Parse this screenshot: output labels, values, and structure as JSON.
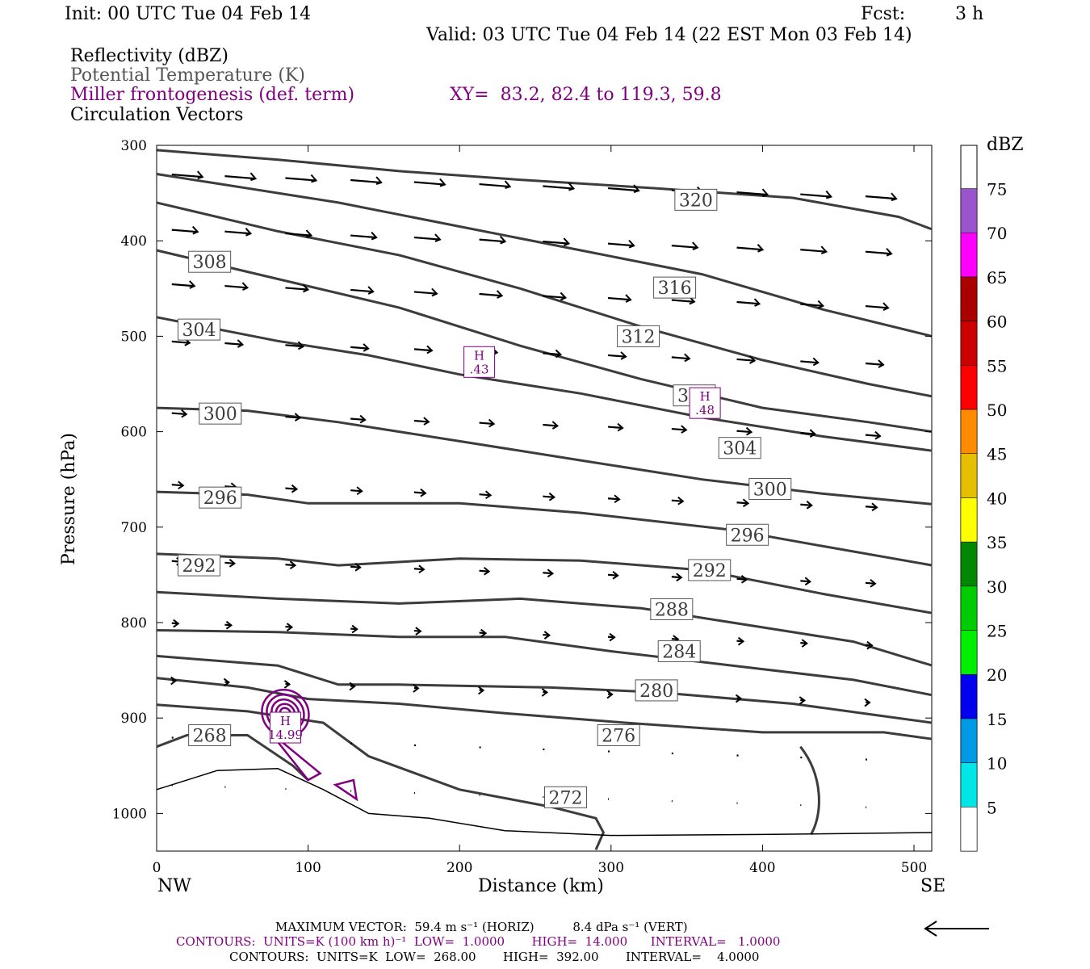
{
  "header": {
    "init": "Init: 00 UTC Tue 04 Feb 14",
    "fcst_label": "Fcst:",
    "fcst_value": "3 h",
    "valid": "Valid: 03 UTC Tue 04 Feb 14 (22 EST Mon 03 Feb 14)"
  },
  "fields": {
    "reflectivity": "Reflectivity (dBZ)",
    "theta": "Potential Temperature (K)",
    "frontogenesis": "Miller frontogenesis (def. term)",
    "xy": "XY=  83.2, 82.4 to 119.3, 59.8",
    "vectors": "Circulation Vectors"
  },
  "footer": {
    "max_vector": "MAXIMUM VECTOR:  59.4 m s⁻¹ (HORIZ)          8.4 dPa s⁻¹ (VERT)",
    "contours_fronto": "CONTOURS:  UNITS=K (100 km h)⁻¹  LOW=  1.0000       HIGH=  14.000      INTERVAL=   1.0000",
    "contours_theta": "CONTOURS:  UNITS=K  LOW=  268.00       HIGH=  392.00       INTERVAL=    4.0000"
  },
  "colors": {
    "theta": "#3c3c3c",
    "fronto": "#800080",
    "vector": "#000000"
  },
  "chart_data": {
    "type": "cross-section",
    "xlabel": "Distance (km)",
    "ylabel": "Pressure (hPa)",
    "x_ticks": [
      0,
      100,
      200,
      300,
      400,
      500
    ],
    "y_ticks": [
      300,
      400,
      500,
      600,
      700,
      800,
      900,
      1000
    ],
    "xlim": [
      0,
      512
    ],
    "ylim": [
      300,
      1040
    ],
    "y_axis": "pressure (inverted)",
    "end_left": "NW",
    "end_right": "SE",
    "colorbar": {
      "unit": "dBZ",
      "levels": [
        5,
        10,
        15,
        20,
        25,
        30,
        35,
        40,
        45,
        50,
        55,
        60,
        65,
        70,
        75
      ],
      "colors": [
        "#ffffff",
        "#00e5e5",
        "#0099e6",
        "#0000ee",
        "#00ee00",
        "#00cc00",
        "#008800",
        "#ffff00",
        "#e5bf00",
        "#ff8c00",
        "#ff0000",
        "#cc0000",
        "#aa0000",
        "#ff00ff",
        "#9955cc"
      ]
    },
    "theta_contours": [
      {
        "value": 268,
        "labeled": true,
        "label_at": [
          35,
          918
        ]
      },
      {
        "value": 272,
        "labeled": true,
        "label_at": [
          270,
          983
        ]
      },
      {
        "value": 276,
        "labeled": true,
        "label_at": [
          305,
          918
        ]
      },
      {
        "value": 280,
        "labeled": true,
        "label_at": [
          330,
          871
        ]
      },
      {
        "value": 284,
        "labeled": true,
        "label_at": [
          345,
          830
        ]
      },
      {
        "value": 288,
        "labeled": true,
        "label_at": [
          340,
          786
        ]
      },
      {
        "value": 292,
        "labeled": true,
        "label_at": [
          28,
          740
        ],
        "label_at2": [
          365,
          745
        ]
      },
      {
        "value": 296,
        "labeled": true,
        "label_at": [
          42,
          669
        ],
        "label_at2": [
          390,
          708
        ]
      },
      {
        "value": 300,
        "labeled": true,
        "label_at": [
          42,
          581
        ],
        "label_at2": [
          405,
          660
        ]
      },
      {
        "value": 304,
        "labeled": true,
        "label_at": [
          28,
          493
        ],
        "label_at2": [
          385,
          617
        ]
      },
      {
        "value": 308,
        "labeled": true,
        "label_at": [
          35,
          422
        ],
        "label_at2": [
          355,
          562
        ]
      },
      {
        "value": 312,
        "labeled": true,
        "label_at": [
          318,
          500
        ]
      },
      {
        "value": 316,
        "labeled": true,
        "label_at": [
          342,
          449
        ]
      },
      {
        "value": 320,
        "labeled": true,
        "label_at": [
          356,
          357
        ]
      }
    ],
    "frontogenesis_maxima": [
      {
        "label": "H",
        "value": "14.99",
        "x": 85,
        "p": 910
      },
      {
        "label": "H",
        "value": ".43",
        "x": 213,
        "p": 527
      },
      {
        "label": "H",
        "value": ".48",
        "x": 362,
        "p": 570
      }
    ]
  }
}
